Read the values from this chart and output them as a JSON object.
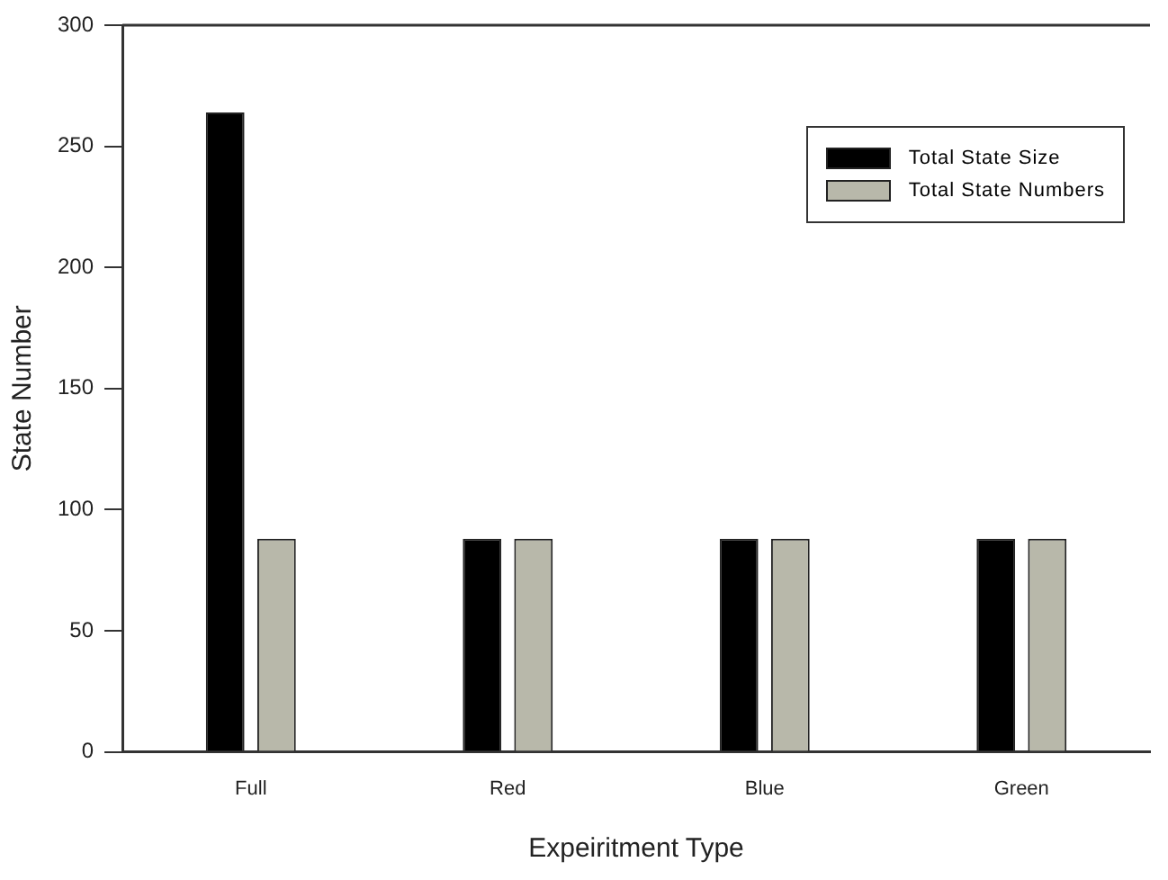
{
  "chart_data": {
    "type": "bar",
    "xlabel": "Expeiritment Type",
    "ylabel": "State Number",
    "categories": [
      "Full",
      "Red",
      "Blue",
      "Green"
    ],
    "series": [
      {
        "name": "Total State Size",
        "color": "#000000",
        "values": [
          264,
          88,
          88,
          88
        ]
      },
      {
        "name": "Total State Numbers",
        "color": "#b8b8aa",
        "values": [
          88,
          88,
          88,
          88
        ]
      }
    ],
    "ylim": [
      0,
      300
    ],
    "yticks": [
      0,
      50,
      100,
      150,
      200,
      250,
      300
    ],
    "grid": false,
    "legend": "top right"
  }
}
